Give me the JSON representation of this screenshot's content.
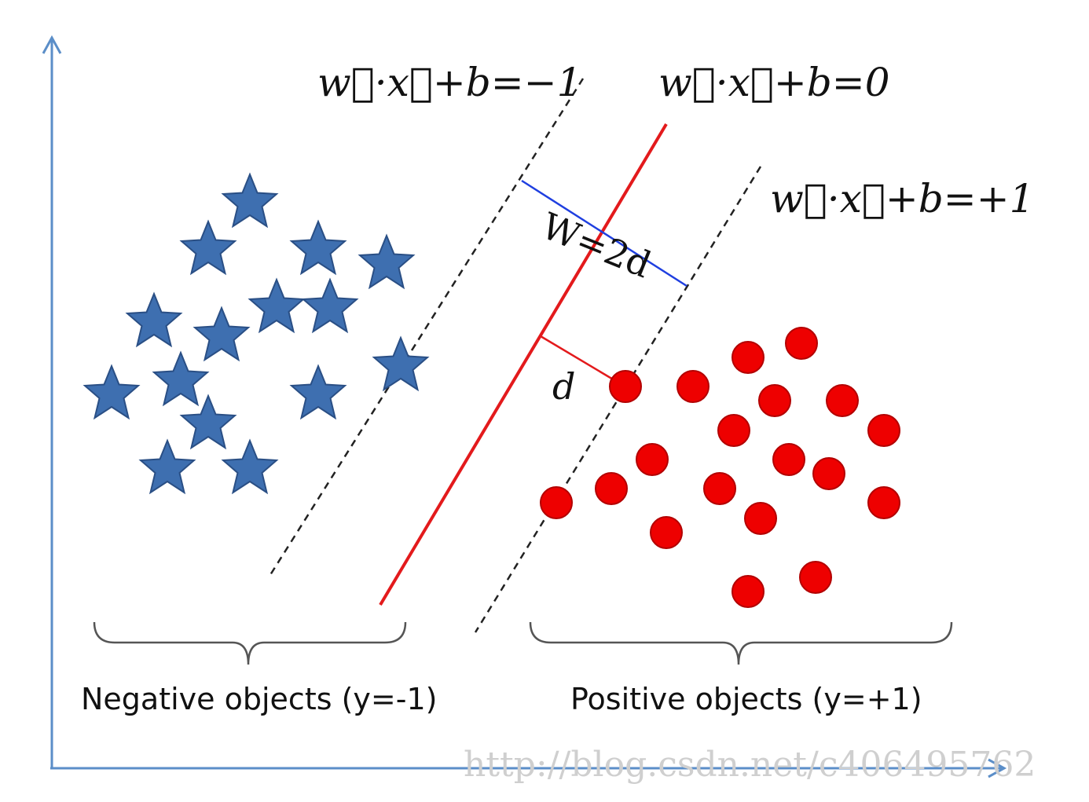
{
  "equations": {
    "lower_margin": "w⃗·x⃗+b=−1",
    "hyperplane": "w⃗·x⃗+b=0",
    "upper_margin": "w⃗·x⃗+b=+1"
  },
  "labels": {
    "margin_width": "W=2d",
    "half_margin": "d"
  },
  "groups": {
    "negative": "Negative objects (y=-1)",
    "positive": "Positive objects (y=+1)"
  },
  "watermark": "http://blog.csdn.net/c406495762",
  "colors": {
    "axis": "#5b8ec8",
    "hyperplane": "#e31a1c",
    "margin_width_line": "#1f3fe0",
    "star": "#3e6fb0",
    "star_outline": "#2a4f85",
    "dot": "#ee0000",
    "dot_outline": "#b30000"
  },
  "icons": {
    "negative_marker": "star-icon",
    "positive_marker": "dot-icon"
  }
}
